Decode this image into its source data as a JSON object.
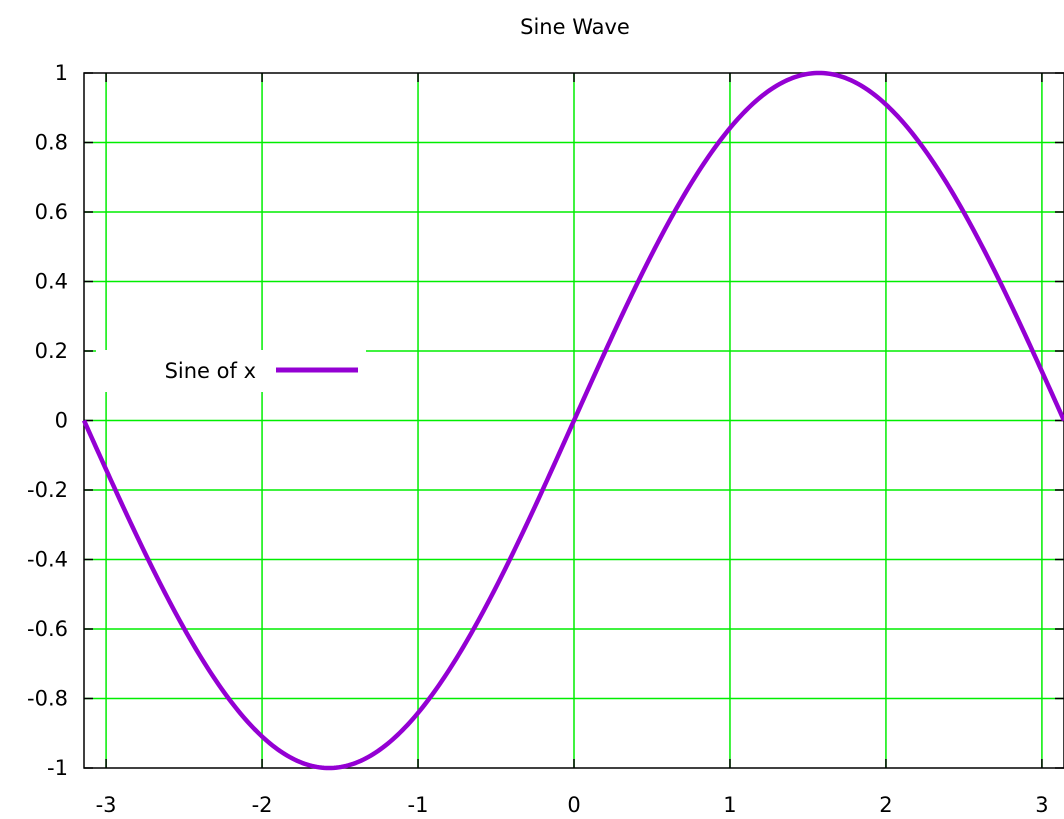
{
  "chart_data": {
    "type": "line",
    "title": "Sine Wave",
    "xlabel": "",
    "ylabel": "",
    "xlim": [
      -3.14159,
      3.14159
    ],
    "ylim": [
      -1,
      1
    ],
    "x_ticks": [
      -3,
      -2,
      -1,
      0,
      1,
      2,
      3
    ],
    "x_tick_labels": [
      "-3",
      "-2",
      "-1",
      "0",
      "1",
      "2",
      "3"
    ],
    "y_ticks": [
      -1,
      -0.8,
      -0.6,
      -0.4,
      -0.2,
      0,
      0.2,
      0.4,
      0.6,
      0.8,
      1
    ],
    "y_tick_labels": [
      "-1",
      "-0.8",
      "-0.6",
      "-0.4",
      "-0.2",
      "0",
      "0.2",
      "0.4",
      "0.6",
      "0.8",
      "1"
    ],
    "grid": true,
    "grid_color": "#00ee00",
    "legend_position": "left",
    "series": [
      {
        "name": "Sine of x",
        "color": "#9400d3",
        "function": "sin(x)",
        "x": [
          -3.1416,
          -2.7489,
          -2.3562,
          -1.9635,
          -1.5708,
          -1.1781,
          -0.7854,
          -0.3927,
          0,
          0.3927,
          0.7854,
          1.1781,
          1.5708,
          1.9635,
          2.3562,
          2.7489,
          3.1416
        ],
        "y": [
          0,
          -0.3827,
          -0.7071,
          -0.9239,
          -1,
          -0.9239,
          -0.7071,
          -0.3827,
          0,
          0.3827,
          0.7071,
          0.9239,
          1,
          0.9239,
          0.7071,
          0.3827,
          0
        ]
      }
    ]
  }
}
